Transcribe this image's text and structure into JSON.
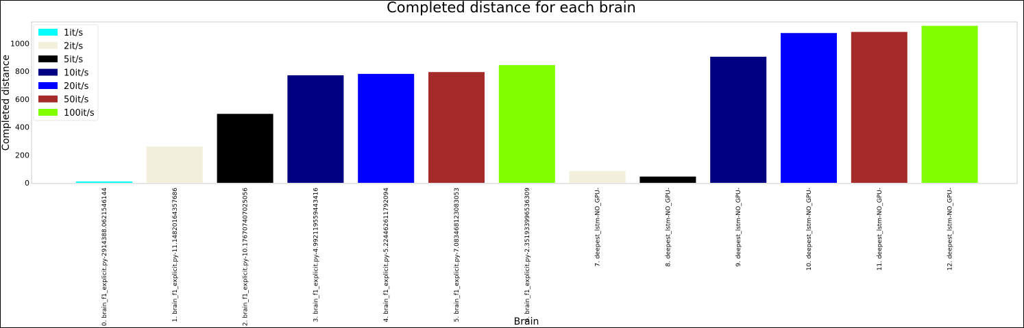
{
  "chart_data": {
    "type": "bar",
    "title": "Completed distance for each brain",
    "xlabel": "Brain",
    "ylabel": "Completed distance",
    "ylim": [
      0,
      1150
    ],
    "yticks": [
      0,
      200,
      400,
      600,
      800,
      1000
    ],
    "grid": false,
    "legend_position": "top-left",
    "legend": [
      {
        "label": "1it/s",
        "color": "#00ffff"
      },
      {
        "label": "2it/s",
        "color": "#f2f0da"
      },
      {
        "label": "5it/s",
        "color": "#000000"
      },
      {
        "label": "10it/s",
        "color": "#000080"
      },
      {
        "label": "20it/s",
        "color": "#0000ff"
      },
      {
        "label": "50it/s",
        "color": "#a52a2a"
      },
      {
        "label": "100it/s",
        "color": "#7fff00"
      }
    ],
    "categories": [
      "0. brain_f1_explicit.py-2914388.0621546144",
      "1. brain_f1_explicit.py-11.14820164357686",
      "2. brain_f1_explicit.py-10.176707407025056",
      "3. brain_f1_explicit.py-4.992119559443416",
      "4. brain_f1_explicit.py-5.224462611792094",
      "5. brain_f1_explicit.py-7.083468123083053",
      "6. brain_f1_explicit.py-2.351933996536309",
      "7. deepest_lstm-NO_GPU-",
      "8. deepest_lstm-NO_GPU-",
      "9. deepest_lstm-NO_GPU-",
      "10. deepest_lstm-NO_GPU-",
      "11. deepest_lstm-NO_GPU-",
      "12. deepest_lstm-NO_GPU-"
    ],
    "values": [
      10,
      260,
      495,
      772,
      782,
      795,
      845,
      85,
      45,
      905,
      1075,
      1083,
      1127
    ],
    "bar_colors": [
      "#00ffff",
      "#f2f0da",
      "#000000",
      "#000080",
      "#0000ff",
      "#a52a2a",
      "#7fff00",
      "#f2f0da",
      "#000000",
      "#000080",
      "#0000ff",
      "#a52a2a",
      "#7fff00"
    ]
  }
}
